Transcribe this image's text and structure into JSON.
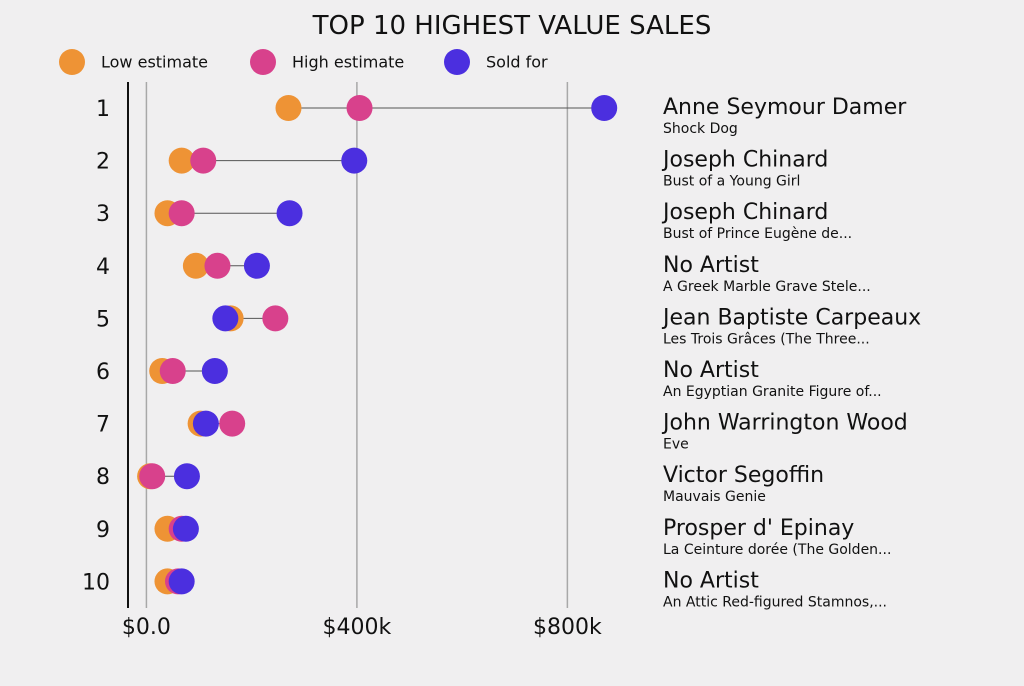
{
  "chart_data": {
    "type": "dumbbell",
    "title": "TOP 10 HIGHEST VALUE SALES",
    "xlim": [
      -35000,
      900000
    ],
    "ticks": [
      0,
      400000,
      800000
    ],
    "tick_labels": [
      "$0.0",
      "$400k",
      "$800k"
    ],
    "grid": true,
    "legend": [
      {
        "key": "low",
        "label": "Low estimate",
        "color": "#ee9335"
      },
      {
        "key": "high",
        "label": "High estimate",
        "color": "#d8418c"
      },
      {
        "key": "sold",
        "label": "Sold for",
        "color": "#4b2fdf"
      }
    ],
    "rows": [
      {
        "rank": "1",
        "artist": "Anne Seymour Damer",
        "work": "Shock Dog",
        "low": 270000,
        "high": 405000,
        "sold": 870000
      },
      {
        "rank": "2",
        "artist": "Joseph Chinard",
        "work": "Bust of a Young Girl",
        "low": 67000,
        "high": 108000,
        "sold": 395000
      },
      {
        "rank": "3",
        "artist": "Joseph Chinard",
        "work": "Bust of Prince Eugène de...",
        "low": 40000,
        "high": 67000,
        "sold": 272000
      },
      {
        "rank": "4",
        "artist": "No Artist",
        "work": "A Greek Marble Grave Stele...",
        "low": 94000,
        "high": 135000,
        "sold": 210000
      },
      {
        "rank": "5",
        "artist": "Jean Baptiste Carpeaux",
        "work": "Les Trois Grâces (The Three...",
        "low": 160000,
        "high": 245000,
        "sold": 150000
      },
      {
        "rank": "6",
        "artist": "No Artist",
        "work": "An Egyptian Granite Figure of...",
        "low": 30000,
        "high": 50000,
        "sold": 130000
      },
      {
        "rank": "7",
        "artist": "John Warrington Wood",
        "work": "Eve",
        "low": 103000,
        "high": 163000,
        "sold": 113000
      },
      {
        "rank": "8",
        "artist": "Victor Segoffin",
        "work": "Mauvais Genie",
        "low": 7000,
        "high": 11000,
        "sold": 77000
      },
      {
        "rank": "9",
        "artist": "Prosper d' Epinay",
        "work": "La Ceinture dorée (The Golden...",
        "low": 40000,
        "high": 67000,
        "sold": 75000
      },
      {
        "rank": "10",
        "artist": "No Artist",
        "work": "An Attic Red-figured Stamnos,...",
        "low": 40000,
        "high": 60000,
        "sold": 67000
      }
    ]
  }
}
